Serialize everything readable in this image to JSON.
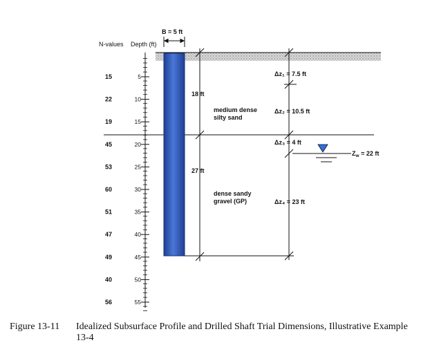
{
  "headers": {
    "n_values": "N-values",
    "depth": "Depth (ft)"
  },
  "shaft": {
    "width_label": "B = 5 ft"
  },
  "rows": [
    {
      "n": "15",
      "depth": "5"
    },
    {
      "n": "22",
      "depth": "10"
    },
    {
      "n": "19",
      "depth": "15"
    },
    {
      "n": "45",
      "depth": "20"
    },
    {
      "n": "53",
      "depth": "25"
    },
    {
      "n": "60",
      "depth": "30"
    },
    {
      "n": "51",
      "depth": "35"
    },
    {
      "n": "47",
      "depth": "40"
    },
    {
      "n": "49",
      "depth": "45"
    },
    {
      "n": "40",
      "depth": "50"
    },
    {
      "n": "56",
      "depth": "55"
    }
  ],
  "layers": {
    "upper_thickness": "18 ft",
    "lower_thickness": "27 ft",
    "upper_name_1": "medium dense",
    "upper_name_2": "silty sand",
    "lower_name_1": "dense sandy",
    "lower_name_2": "gravel (GP)"
  },
  "increments": {
    "dz1": "Δz₁ = 7.5 ft",
    "dz2": "Δz₂ = 10.5 ft",
    "dz3": "Δz₃ = 4 ft",
    "dz4": "Δz₄ = 23 ft",
    "zw": "Z",
    "zw_sub": "w",
    "zw_value": " = 22 ft"
  },
  "caption": {
    "number": "Figure 13-11",
    "text": "Idealized Subsurface Profile and Drilled Shaft Trial Dimensions, Illustrative Example 13-4"
  },
  "colors": {
    "shaft": "#3f67c9",
    "shaft_dark": "#1f3f93",
    "water": "#2f6fe0"
  }
}
